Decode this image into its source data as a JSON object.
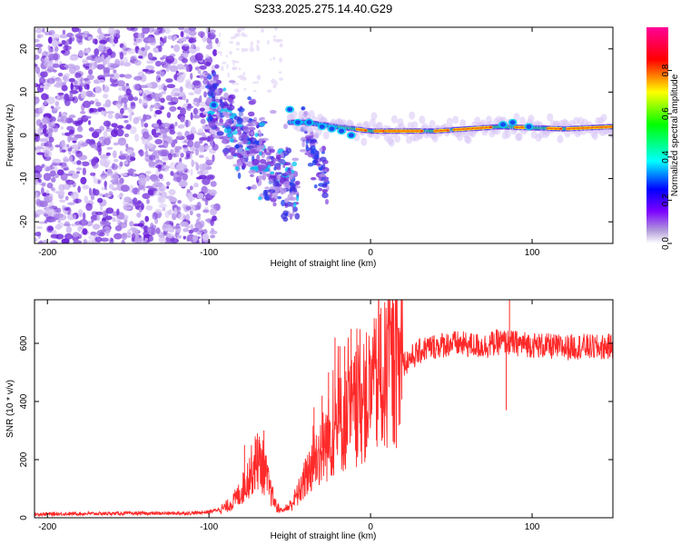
{
  "figure_title": "S233.2025.275.14.40.G29",
  "chart_data": [
    {
      "type": "heatmap",
      "name": "spectrogram",
      "xlabel": "Height of straight line (km)",
      "ylabel": "Frequency (Hz)",
      "xlim": [
        -208,
        150
      ],
      "ylim": [
        -25,
        25
      ],
      "xticks": [
        -200,
        -100,
        0,
        100
      ],
      "yticks": [
        -20,
        -10,
        0,
        10,
        20
      ],
      "xtick_labels": [
        "-200",
        "-100",
        "0",
        "100"
      ],
      "ytick_labels": [
        "-20",
        "-10",
        "0",
        "10",
        "20"
      ],
      "colorbar": {
        "label": "Normalized spectral amplitude",
        "range": [
          0,
          1
        ],
        "ticks": [
          0.0,
          0.2,
          0.4,
          0.6,
          0.8
        ],
        "tick_labels": [
          "0.0",
          "0.2",
          "0.4",
          "0.6",
          "0.8"
        ],
        "colormap": [
          "#b19cd9",
          "#7b00ff",
          "#0000ff",
          "#00ffff",
          "#00ff00",
          "#ffff00",
          "#ff0000",
          "#ff0099"
        ]
      },
      "features": {
        "noise_region_x": [
          -208,
          -95
        ],
        "scatter_tail_x": [
          -100,
          -45
        ],
        "scatter_tail_freq_at_start_hz": 7,
        "scatter_tail_freq_at_end_hz": -13,
        "main_trace_x": [
          -50,
          150
        ],
        "main_trace_freq_hz": [
          [
            -40,
            3
          ],
          [
            -20,
            2
          ],
          [
            0,
            1
          ],
          [
            40,
            1
          ],
          [
            80,
            2
          ],
          [
            120,
            1.5
          ],
          [
            150,
            2
          ]
        ]
      }
    },
    {
      "type": "line",
      "name": "snr",
      "xlabel": "Height of straight line (km)",
      "ylabel": "SNR (10 * v/v)",
      "xlim": [
        -208,
        150
      ],
      "ylim": [
        0,
        750
      ],
      "xticks": [
        -200,
        -100,
        0,
        100
      ],
      "yticks": [
        0,
        200,
        400,
        600
      ],
      "xtick_labels": [
        "-200",
        "-100",
        "0",
        "100"
      ],
      "ytick_labels": [
        "0",
        "200",
        "400",
        "600"
      ],
      "series": [
        {
          "name": "SNR",
          "color": "#ff2a2a",
          "x": [
            -208,
            -180,
            -150,
            -130,
            -110,
            -100,
            -90,
            -85,
            -80,
            -75,
            -70,
            -66,
            -62,
            -58,
            -54,
            -50,
            -45,
            -40,
            -35,
            -30,
            -25,
            -20,
            -15,
            -10,
            -5,
            0,
            5,
            10,
            15,
            20,
            25,
            30,
            35,
            40,
            50,
            60,
            70,
            80,
            90,
            100,
            110,
            120,
            130,
            140,
            150
          ],
          "y": [
            12,
            14,
            15,
            15,
            16,
            20,
            35,
            55,
            90,
            150,
            200,
            170,
            90,
            35,
            25,
            40,
            80,
            140,
            200,
            240,
            280,
            320,
            340,
            370,
            400,
            430,
            460,
            490,
            510,
            530,
            550,
            570,
            585,
            590,
            600,
            595,
            590,
            605,
            600,
            595,
            590,
            585,
            590,
            585,
            590
          ]
        }
      ],
      "spikes": [
        {
          "x": -78,
          "y": 250
        },
        {
          "x": -70,
          "y": 290
        },
        {
          "x": -66,
          "y": 300
        },
        {
          "x": -35,
          "y": 380
        },
        {
          "x": -30,
          "y": 420
        },
        {
          "x": -26,
          "y": 500
        },
        {
          "x": -22,
          "y": 620
        },
        {
          "x": -19,
          "y": 590
        },
        {
          "x": -16,
          "y": 590
        },
        {
          "x": -12,
          "y": 650
        },
        {
          "x": 6,
          "y": 700
        },
        {
          "x": 9,
          "y": 560
        },
        {
          "x": 75,
          "y": 640
        },
        {
          "x": 86,
          "y": 750
        },
        {
          "x": 84,
          "y": 370
        }
      ]
    }
  ]
}
